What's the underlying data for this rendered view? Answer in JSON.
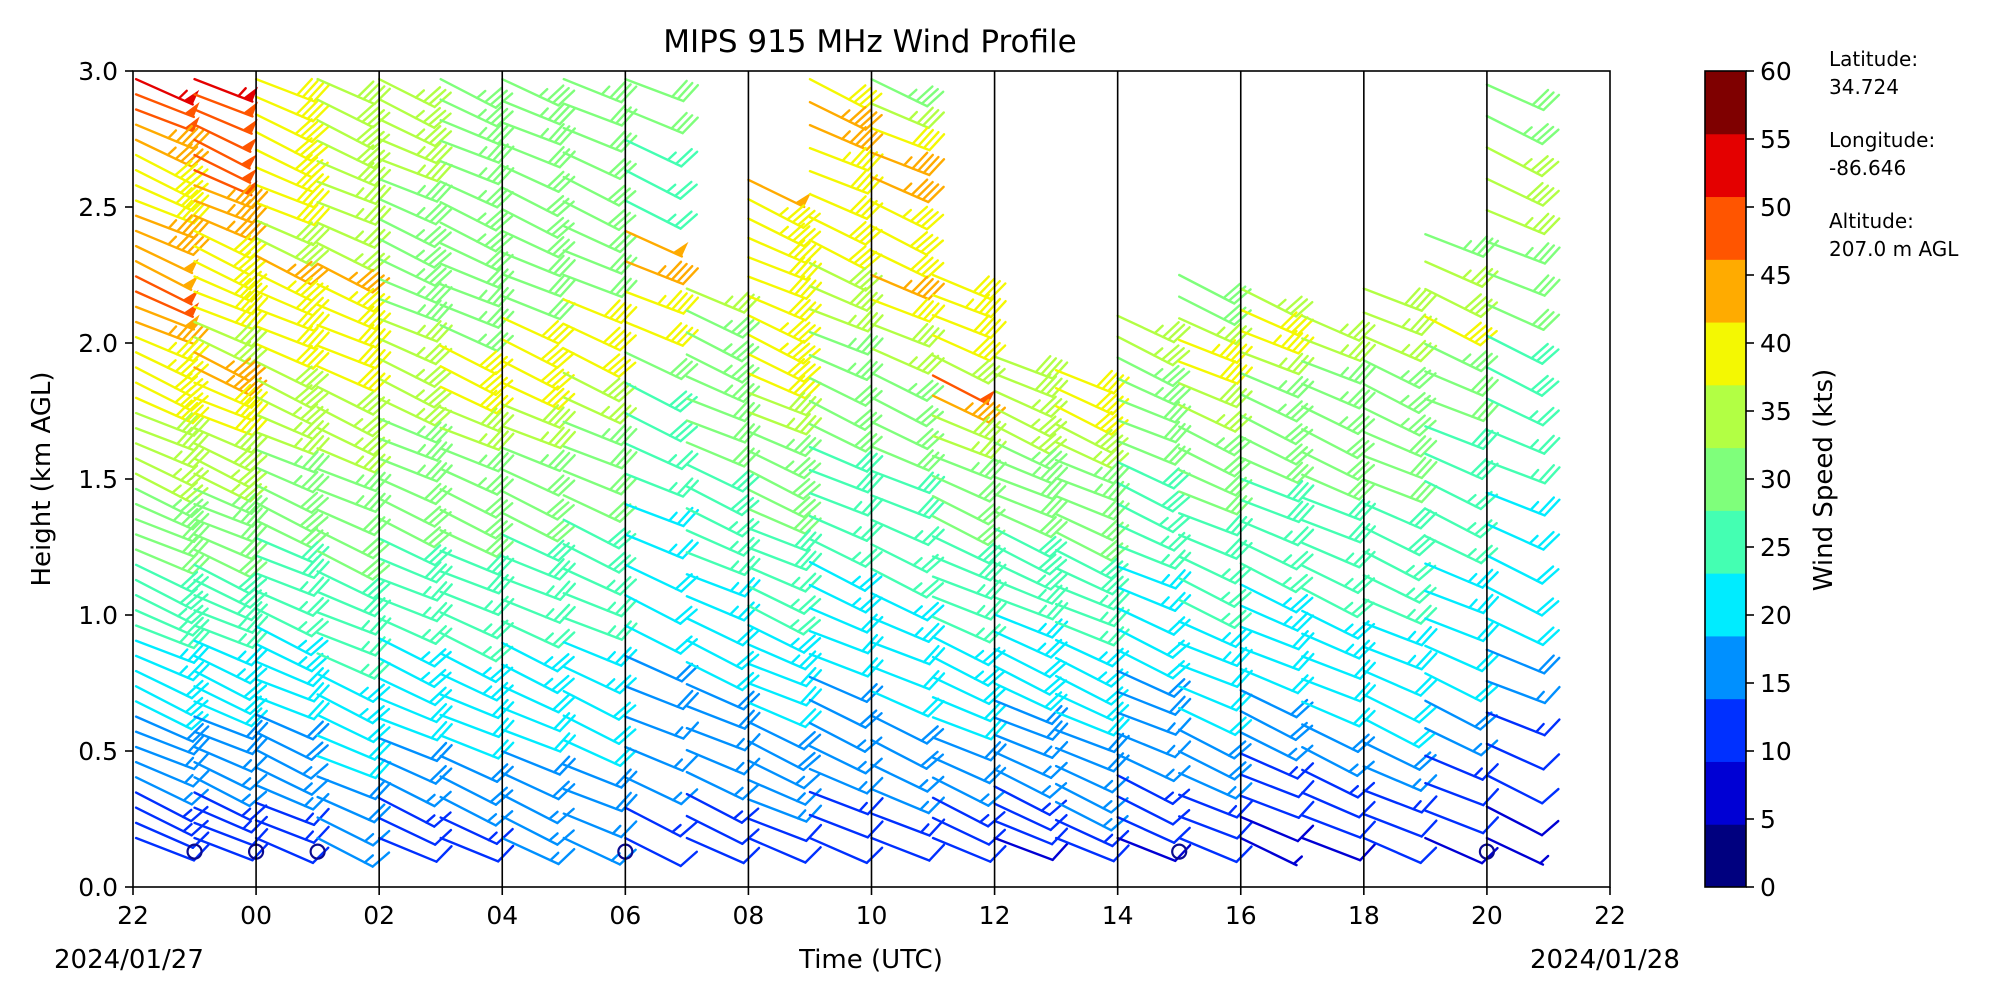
{
  "chart_data": {
    "type": "wind_barb_profile",
    "title": "MIPS 915 MHz Wind Profile",
    "xlabel": "Time (UTC)",
    "ylabel": "Height (km AGL)",
    "x_range_hours": [
      -2,
      22
    ],
    "x_tick_labels": [
      "22",
      "00",
      "02",
      "04",
      "06",
      "08",
      "10",
      "12",
      "14",
      "16",
      "18",
      "20",
      "22"
    ],
    "date_left": "2024/01/27",
    "date_right": "2024/01/28",
    "ylim": [
      0.0,
      3.0
    ],
    "y_tick_labels": [
      "0.0",
      "0.5",
      "1.0",
      "1.5",
      "2.0",
      "2.5",
      "3.0"
    ],
    "vertical_gridlines_hours": [
      0,
      2,
      4,
      6,
      8,
      10,
      12,
      14,
      16,
      18,
      20
    ],
    "site": {
      "latitude_label": "Latitude:",
      "latitude": "34.724",
      "longitude_label": "Longitude:",
      "longitude": "-86.646",
      "altitude_label": "Altitude:",
      "altitude": "207.0 m AGL"
    },
    "colorbar": {
      "label": "Wind Speed (kts)",
      "ticks": [
        "0",
        "5",
        "10",
        "15",
        "20",
        "25",
        "30",
        "35",
        "40",
        "45",
        "50",
        "55",
        "60"
      ],
      "colors": [
        "#00007f",
        "#0000d4",
        "#0030ff",
        "#0090ff",
        "#00ecff",
        "#44ffb2",
        "#7fff7b",
        "#b2ff44",
        "#f4f802",
        "#ffab00",
        "#ff5500",
        "#e40000",
        "#7f0000"
      ]
    },
    "profiles": [
      {
        "hour": -1.95,
        "speed_top": [
          55,
          50,
          50,
          45,
          45,
          42,
          40,
          40,
          42,
          45,
          46,
          48,
          48,
          50,
          50,
          48,
          46,
          44,
          44,
          42,
          40,
          40,
          38,
          38,
          37,
          36,
          35,
          34,
          33,
          32,
          31,
          30,
          29,
          28,
          27,
          26,
          25,
          24,
          23,
          22,
          21,
          20,
          19,
          18,
          17,
          16,
          15,
          14,
          13,
          12,
          10
        ]
      },
      {
        "hour": -1.0,
        "speed_top": [
          55,
          50,
          50,
          50,
          50,
          50,
          50,
          46,
          46,
          46,
          42,
          42,
          40,
          40,
          40,
          40,
          38,
          38,
          45,
          45,
          42,
          42,
          40,
          38,
          38,
          36,
          35,
          34,
          33,
          32,
          31,
          30,
          29,
          28,
          27,
          26,
          25,
          24,
          23,
          22,
          21,
          20,
          19,
          18,
          17,
          16,
          15,
          14,
          13,
          12,
          10
        ],
        "calm_at": 0.13
      },
      {
        "hour": 0.0,
        "speed_top": [
          42,
          42,
          42,
          42,
          42,
          40,
          40,
          40,
          38,
          38,
          45,
          44,
          42,
          40,
          40,
          40,
          38,
          38,
          37,
          36,
          35,
          34,
          33,
          32,
          31,
          30,
          29,
          28,
          27,
          26,
          25,
          24,
          23,
          22,
          21,
          20,
          19,
          18,
          17,
          16,
          15,
          14,
          13,
          12
        ],
        "calm_at": 0.13
      },
      {
        "hour": 1.0,
        "speed_top": [
          38,
          38,
          38,
          38,
          38,
          36,
          36,
          36,
          36,
          45,
          44,
          42,
          40,
          40,
          40,
          38,
          37,
          36,
          35,
          34,
          33,
          32,
          31,
          30,
          29,
          28,
          27,
          26,
          25,
          24,
          23,
          22,
          21,
          20,
          19,
          18,
          17,
          16
        ],
        "calm_at": 0.13
      },
      {
        "hour": 2.0,
        "speed_top": [
          36,
          36,
          36,
          35,
          35,
          34,
          34,
          34,
          33,
          33,
          34,
          34,
          35,
          36,
          36,
          36,
          35,
          34,
          33,
          33,
          32,
          31,
          30,
          29,
          28,
          27,
          26,
          25,
          24,
          23,
          22,
          21,
          20,
          19,
          18,
          16,
          14,
          12,
          10
        ]
      },
      {
        "hour": 3.0,
        "speed_top": [
          34,
          34,
          34,
          33,
          33,
          33,
          33,
          33,
          32,
          32,
          33,
          33,
          34,
          42,
          42,
          40,
          38,
          36,
          34,
          33,
          32,
          31,
          30,
          29,
          28,
          27,
          26,
          25,
          24,
          23,
          22,
          21,
          20,
          19,
          18,
          16,
          14,
          12
        ]
      },
      {
        "hour": 4.0,
        "speed_top": [
          34,
          33,
          33,
          32,
          32,
          32,
          32,
          31,
          31,
          31,
          31,
          42,
          42,
          42,
          40,
          38,
          36,
          34,
          32,
          31,
          30,
          29,
          28,
          27,
          26,
          25,
          24,
          23,
          22,
          21,
          20,
          19,
          18,
          17,
          16,
          15
        ]
      },
      {
        "hour": 5.0,
        "speed_top": [
          33,
          32,
          32,
          31,
          31,
          31,
          30,
          30,
          30,
          42,
          42,
          40,
          38,
          36,
          34,
          32,
          31,
          30,
          29,
          28,
          27,
          26,
          25,
          24,
          23,
          22,
          21,
          20,
          19,
          18,
          17,
          16
        ]
      },
      {
        "hour": 6.0,
        "speed_top": [
          30,
          30,
          27,
          26,
          25,
          48,
          46,
          44,
          42,
          30,
          29,
          28,
          26,
          25,
          24,
          23,
          22,
          21,
          20,
          19,
          18,
          17,
          16,
          15,
          14,
          12
        ],
        "gap_top": 2.3,
        "calm_at": 0.13
      },
      {
        "hour": 7.0,
        "speed_top": [
          36,
          34,
          34,
          33,
          33,
          32,
          31,
          30,
          29,
          28,
          27,
          26,
          25,
          24,
          23,
          22,
          21,
          20,
          19,
          18,
          17,
          16,
          15,
          14,
          12,
          10
        ],
        "top": 2.2
      },
      {
        "hour": 8.0,
        "speed_top": [
          48,
          44,
          44,
          42,
          42,
          40,
          40,
          44,
          44,
          42,
          40,
          38,
          36,
          34,
          33,
          32,
          31,
          30,
          29,
          28,
          27,
          26,
          25,
          24,
          23,
          22,
          21,
          20,
          19,
          18,
          17,
          16,
          15,
          12,
          10
        ],
        "top": 2.6
      },
      {
        "hour": 9.0,
        "speed_top": [
          42,
          46,
          46,
          44,
          42,
          42,
          40,
          40,
          38,
          38,
          36,
          34,
          33,
          32,
          31,
          30,
          29,
          28,
          27,
          26,
          25,
          24,
          23,
          22,
          21,
          20,
          19,
          18,
          17,
          16,
          15,
          14,
          12,
          10
        ]
      },
      {
        "hour": 10.0,
        "speed_top": [
          34,
          36,
          40,
          46,
          46,
          44,
          42,
          40,
          45,
          40,
          38,
          36,
          34,
          32,
          31,
          30,
          29,
          28,
          27,
          26,
          25,
          24,
          23,
          22,
          21,
          20,
          19,
          18,
          17,
          16,
          14,
          12
        ]
      },
      {
        "hour": 11.0,
        "speed_top": [
          42,
          44,
          42,
          40,
          38,
          50,
          46,
          38,
          36,
          34,
          32,
          31,
          30,
          29,
          28,
          27,
          26,
          25,
          24,
          23,
          22,
          21,
          20,
          19,
          18,
          16,
          14,
          12,
          10
        ],
        "top": 2.25
      },
      {
        "hour": 12.0,
        "speed_top": [
          38,
          38,
          36,
          36,
          35,
          34,
          33,
          32,
          31,
          30,
          29,
          28,
          27,
          26,
          25,
          24,
          23,
          22,
          21,
          20,
          19,
          18,
          17,
          16,
          15,
          14,
          12,
          10,
          8
        ],
        "top": 1.95
      },
      {
        "hour": 13.0,
        "speed_top": [
          40,
          42,
          42,
          38,
          36,
          34,
          33,
          32,
          31,
          30,
          29,
          28,
          27,
          26,
          25,
          24,
          23,
          22,
          21,
          20,
          19,
          18,
          17,
          16,
          15,
          14,
          12
        ],
        "top": 1.9
      },
      {
        "hour": 14.0,
        "speed_top": [
          36,
          35,
          34,
          33,
          32,
          31,
          30,
          29,
          28,
          27,
          26,
          25,
          24,
          23,
          22,
          21,
          20,
          19,
          18,
          17,
          16,
          15,
          14,
          12,
          10,
          8
        ],
        "top": 2.1
      },
      {
        "hour": 15.0,
        "speed_top": [
          30,
          30,
          36,
          44,
          42,
          38,
          36,
          34,
          32,
          31,
          30,
          29,
          28,
          27,
          26,
          25,
          24,
          23,
          22,
          21,
          20,
          19,
          18,
          16,
          14,
          12,
          10
        ],
        "top": 2.25,
        "calm_at": 0.13
      },
      {
        "hour": 16.0,
        "speed_top": [
          36,
          40,
          44,
          36,
          34,
          33,
          32,
          31,
          30,
          29,
          28,
          27,
          26,
          25,
          24,
          23,
          22,
          21,
          20,
          19,
          18,
          16,
          14,
          12,
          10,
          8,
          6
        ],
        "top": 2.2
      },
      {
        "hour": 17.0,
        "speed_top": [
          36,
          36,
          34,
          34,
          33,
          32,
          31,
          30,
          29,
          28,
          27,
          26,
          25,
          24,
          23,
          22,
          21,
          20,
          18,
          16,
          14,
          12,
          10,
          8
        ],
        "top": 2.1
      },
      {
        "hour": 18.0,
        "speed_top": [
          38,
          36,
          36,
          34,
          34,
          33,
          32,
          31,
          30,
          29,
          28,
          27,
          26,
          25,
          24,
          23,
          22,
          21,
          20,
          18,
          16,
          14,
          12,
          10
        ],
        "top": 2.2
      },
      {
        "hour": 19.0,
        "speed_top": [
          34,
          36,
          38,
          40,
          34,
          32,
          30,
          29,
          28,
          27,
          26,
          25,
          24,
          23,
          22,
          21,
          20,
          18,
          16,
          14,
          12,
          10,
          8
        ],
        "top": 2.4
      },
      {
        "hour": 20.0,
        "speed_top": [
          30,
          34,
          36,
          38,
          36,
          34,
          32,
          30,
          29,
          28,
          27,
          26,
          25,
          24,
          23,
          22,
          21,
          20,
          18,
          16,
          14,
          12,
          10,
          8,
          6
        ],
        "top": 2.95,
        "calm_at": 0.13
      }
    ]
  }
}
